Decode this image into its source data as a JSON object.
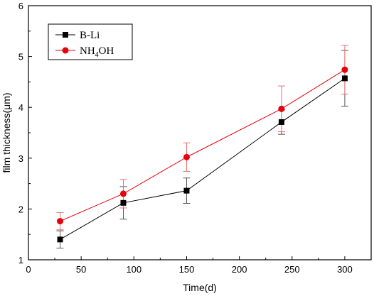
{
  "chart_data": {
    "type": "line",
    "xlabel": "Time(d)",
    "ylabel": "film thickness(μm)",
    "xlim": [
      0,
      325
    ],
    "ylim": [
      1,
      6
    ],
    "xticks": [
      0,
      50,
      100,
      150,
      200,
      250,
      300
    ],
    "yticks": [
      1,
      2,
      3,
      4,
      5,
      6
    ],
    "grid": false,
    "legend_position": "top-left",
    "x": [
      30,
      90,
      150,
      240,
      300
    ],
    "series": [
      {
        "name": "B-Li",
        "marker": "square",
        "color": "#000000",
        "values": [
          1.4,
          2.12,
          2.36,
          3.71,
          4.57
        ],
        "error_low": [
          0.17,
          0.32,
          0.25,
          0.24,
          0.55
        ],
        "error_high": [
          0.17,
          0.32,
          0.25,
          0.24,
          0.55
        ]
      },
      {
        "name": "NH4OH",
        "legend_parts": [
          "NH",
          "4",
          "OH"
        ],
        "marker": "circle",
        "color": "#e8000b",
        "values": [
          1.76,
          2.3,
          3.02,
          3.97,
          4.74
        ],
        "error_low": [
          0.17,
          0.28,
          0.28,
          0.45,
          0.48
        ],
        "error_high": [
          0.17,
          0.28,
          0.28,
          0.45,
          0.48
        ]
      }
    ]
  }
}
